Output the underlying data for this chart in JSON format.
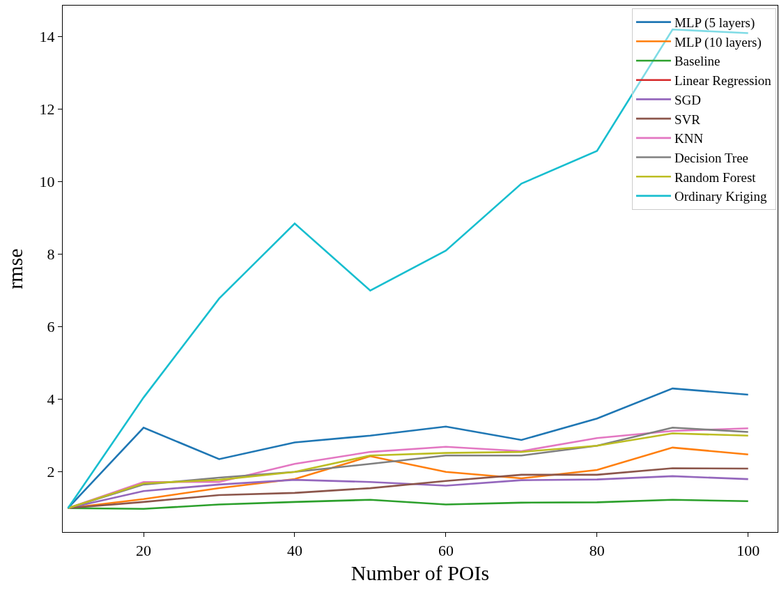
{
  "chart_data": {
    "type": "line",
    "xlabel": "Number of POIs",
    "ylabel": "rmse",
    "x": [
      10,
      20,
      30,
      40,
      50,
      60,
      70,
      80,
      90,
      100
    ],
    "xlim": [
      9.3,
      103.9
    ],
    "xticks": [
      20,
      40,
      60,
      80,
      100
    ],
    "ylim": [
      0.34,
      14.86
    ],
    "yticks": [
      2,
      4,
      6,
      8,
      10,
      12,
      14
    ],
    "grid": false,
    "legend": "top right",
    "marker": "none",
    "line_style": "solid",
    "series": [
      {
        "name": "MLP (5 layers)",
        "color": "#1f77b4",
        "values": [
          1,
          3.22,
          2.35,
          2.81,
          3.0,
          3.25,
          2.88,
          3.47,
          4.3,
          4.13
        ]
      },
      {
        "name": "MLP (10 layers)",
        "color": "#ff7f0e",
        "values": [
          1,
          1.25,
          1.55,
          1.8,
          2.43,
          2.0,
          1.82,
          2.05,
          2.67,
          2.48
        ]
      },
      {
        "name": "Baseline",
        "color": "#2ca02c",
        "values": [
          1,
          0.98,
          1.1,
          1.17,
          1.23,
          1.1,
          1.15,
          1.16,
          1.23,
          1.19
        ]
      },
      {
        "name": "Linear Regression",
        "color": "#d62728",
        "values": [
          null,
          null,
          null,
          null,
          null,
          null,
          null,
          null,
          null,
          null
        ]
      },
      {
        "name": "SGD",
        "color": "#9467bd",
        "values": [
          1,
          1.47,
          1.65,
          1.78,
          1.72,
          1.62,
          1.77,
          1.79,
          1.88,
          1.8
        ]
      },
      {
        "name": "SVR",
        "color": "#8c564b",
        "values": [
          1,
          1.17,
          1.36,
          1.42,
          1.55,
          1.75,
          1.92,
          1.92,
          2.1,
          2.09
        ]
      },
      {
        "name": "KNN",
        "color": "#e377c2",
        "values": [
          1,
          1.72,
          1.72,
          2.22,
          2.55,
          2.69,
          2.57,
          2.93,
          3.13,
          3.2
        ]
      },
      {
        "name": "Decision Tree",
        "color": "#7f7f7f",
        "values": [
          1,
          1.65,
          1.84,
          2.0,
          2.22,
          2.45,
          2.45,
          2.72,
          3.22,
          3.1
        ]
      },
      {
        "name": "Random Forest",
        "color": "#bcbd22",
        "values": [
          1,
          1.68,
          1.78,
          2.0,
          2.45,
          2.52,
          2.55,
          2.72,
          3.06,
          3.0
        ]
      },
      {
        "name": "Ordinary Kriging",
        "color": "#17becf",
        "values": [
          1,
          4.05,
          6.78,
          8.85,
          7.0,
          8.1,
          9.95,
          10.85,
          14.2,
          14.1
        ]
      }
    ]
  }
}
